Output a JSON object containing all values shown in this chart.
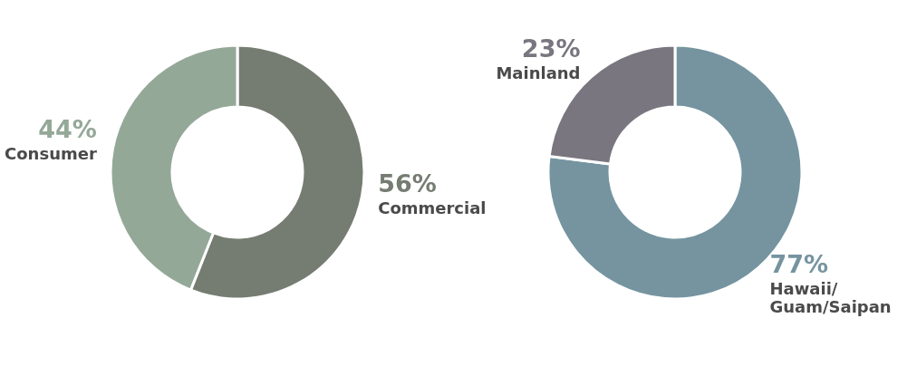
{
  "chart_data": [
    {
      "type": "donut",
      "categories": [
        "Commercial",
        "Consumer"
      ],
      "values": [
        56,
        44
      ],
      "colors": [
        "#757d72",
        "#94a898"
      ],
      "value_labels": [
        "56%",
        "44%"
      ]
    },
    {
      "type": "donut",
      "categories": [
        "Hawaii/Guam/Saipan",
        "Mainland"
      ],
      "values": [
        77,
        23
      ],
      "colors": [
        "#7594a0",
        "#797680"
      ],
      "value_labels": [
        "77%",
        "23%"
      ]
    }
  ]
}
